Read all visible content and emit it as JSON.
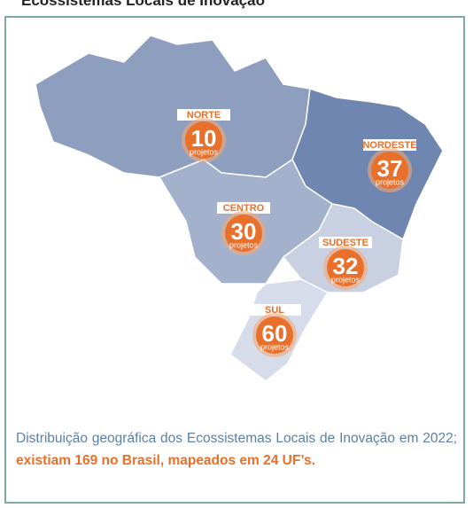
{
  "header": {
    "title": "Ecossistemas Locais de Inovação"
  },
  "regions": [
    {
      "name": "NORTE",
      "value": 10,
      "unit": "projetos"
    },
    {
      "name": "NORDESTE",
      "value": 37,
      "unit": "projetos"
    },
    {
      "name": "CENTRO",
      "value": 30,
      "unit": "projetos"
    },
    {
      "name": "SUDESTE",
      "value": 32,
      "unit": "projetos"
    },
    {
      "name": "SUL",
      "value": 60,
      "unit": "projetos"
    }
  ],
  "caption": {
    "text": "Distribuição geográfica dos Ecossistemas Locais de Inovação em 2022; ",
    "highlight": "existiam 169 no Brasil, mapeados em 24 UF’s."
  }
}
